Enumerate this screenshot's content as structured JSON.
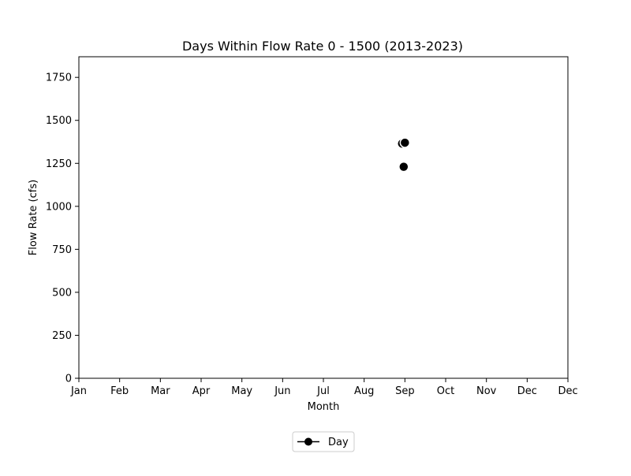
{
  "chart_data": {
    "type": "scatter",
    "title": "Days Within Flow Rate 0 - 1500 (2013-2023)",
    "xlabel": "Month",
    "ylabel": "Flow Rate (cfs)",
    "x_ticks": [
      "Jan",
      "Feb",
      "Mar",
      "Apr",
      "May",
      "Jun",
      "Jul",
      "Aug",
      "Sep",
      "Oct",
      "Nov",
      "Dec",
      "Dec"
    ],
    "ylim": [
      0,
      1870
    ],
    "y_ticks": [
      0,
      250,
      500,
      750,
      1000,
      1250,
      1500,
      1750
    ],
    "grid": false,
    "legend_position": "below",
    "series": [
      {
        "name": "Day",
        "color": "#000000",
        "marker": "circle",
        "points": [
          {
            "month_index": 7.93,
            "y": 1365
          },
          {
            "month_index": 8.0,
            "y": 1370
          },
          {
            "month_index": 7.97,
            "y": 1230
          }
        ]
      }
    ]
  }
}
